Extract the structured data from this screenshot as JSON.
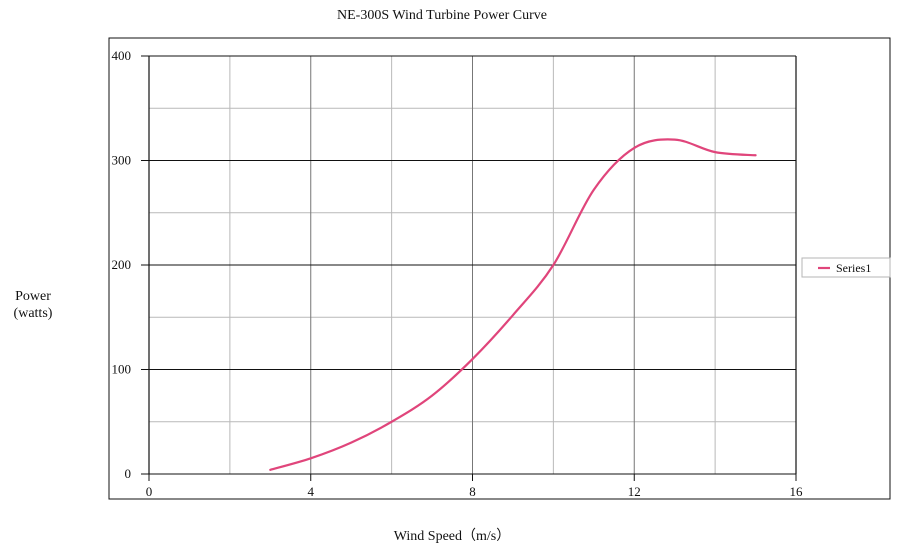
{
  "chart_data": {
    "type": "line",
    "title": "NE-300S Wind Turbine Power Curve",
    "xlabel": "Wind Speed（m/s）",
    "ylabel_lines": [
      "Power",
      "(watts)"
    ],
    "xlim": [
      0,
      16
    ],
    "ylim": [
      0,
      400
    ],
    "x_ticks": [
      0,
      4,
      8,
      12,
      16
    ],
    "y_ticks": [
      0,
      100,
      200,
      300,
      400
    ],
    "x_tick_labels": [
      "0",
      "4",
      "8",
      "12",
      "16"
    ],
    "y_tick_labels": [
      "0",
      "100",
      "200",
      "300",
      "400"
    ],
    "grid": true,
    "legend_position": "right",
    "series": [
      {
        "name": "Series1",
        "color": "#E0457B",
        "x": [
          3,
          4,
          5,
          6,
          7,
          8,
          9,
          10,
          11,
          12,
          13,
          14,
          15
        ],
        "y": [
          4,
          15,
          30,
          50,
          75,
          110,
          152,
          200,
          272,
          312,
          320,
          308,
          305
        ]
      }
    ],
    "colors": {
      "major_grid": "#111111",
      "minor_grid": "#b9b9b9",
      "frame": "#111111"
    }
  }
}
